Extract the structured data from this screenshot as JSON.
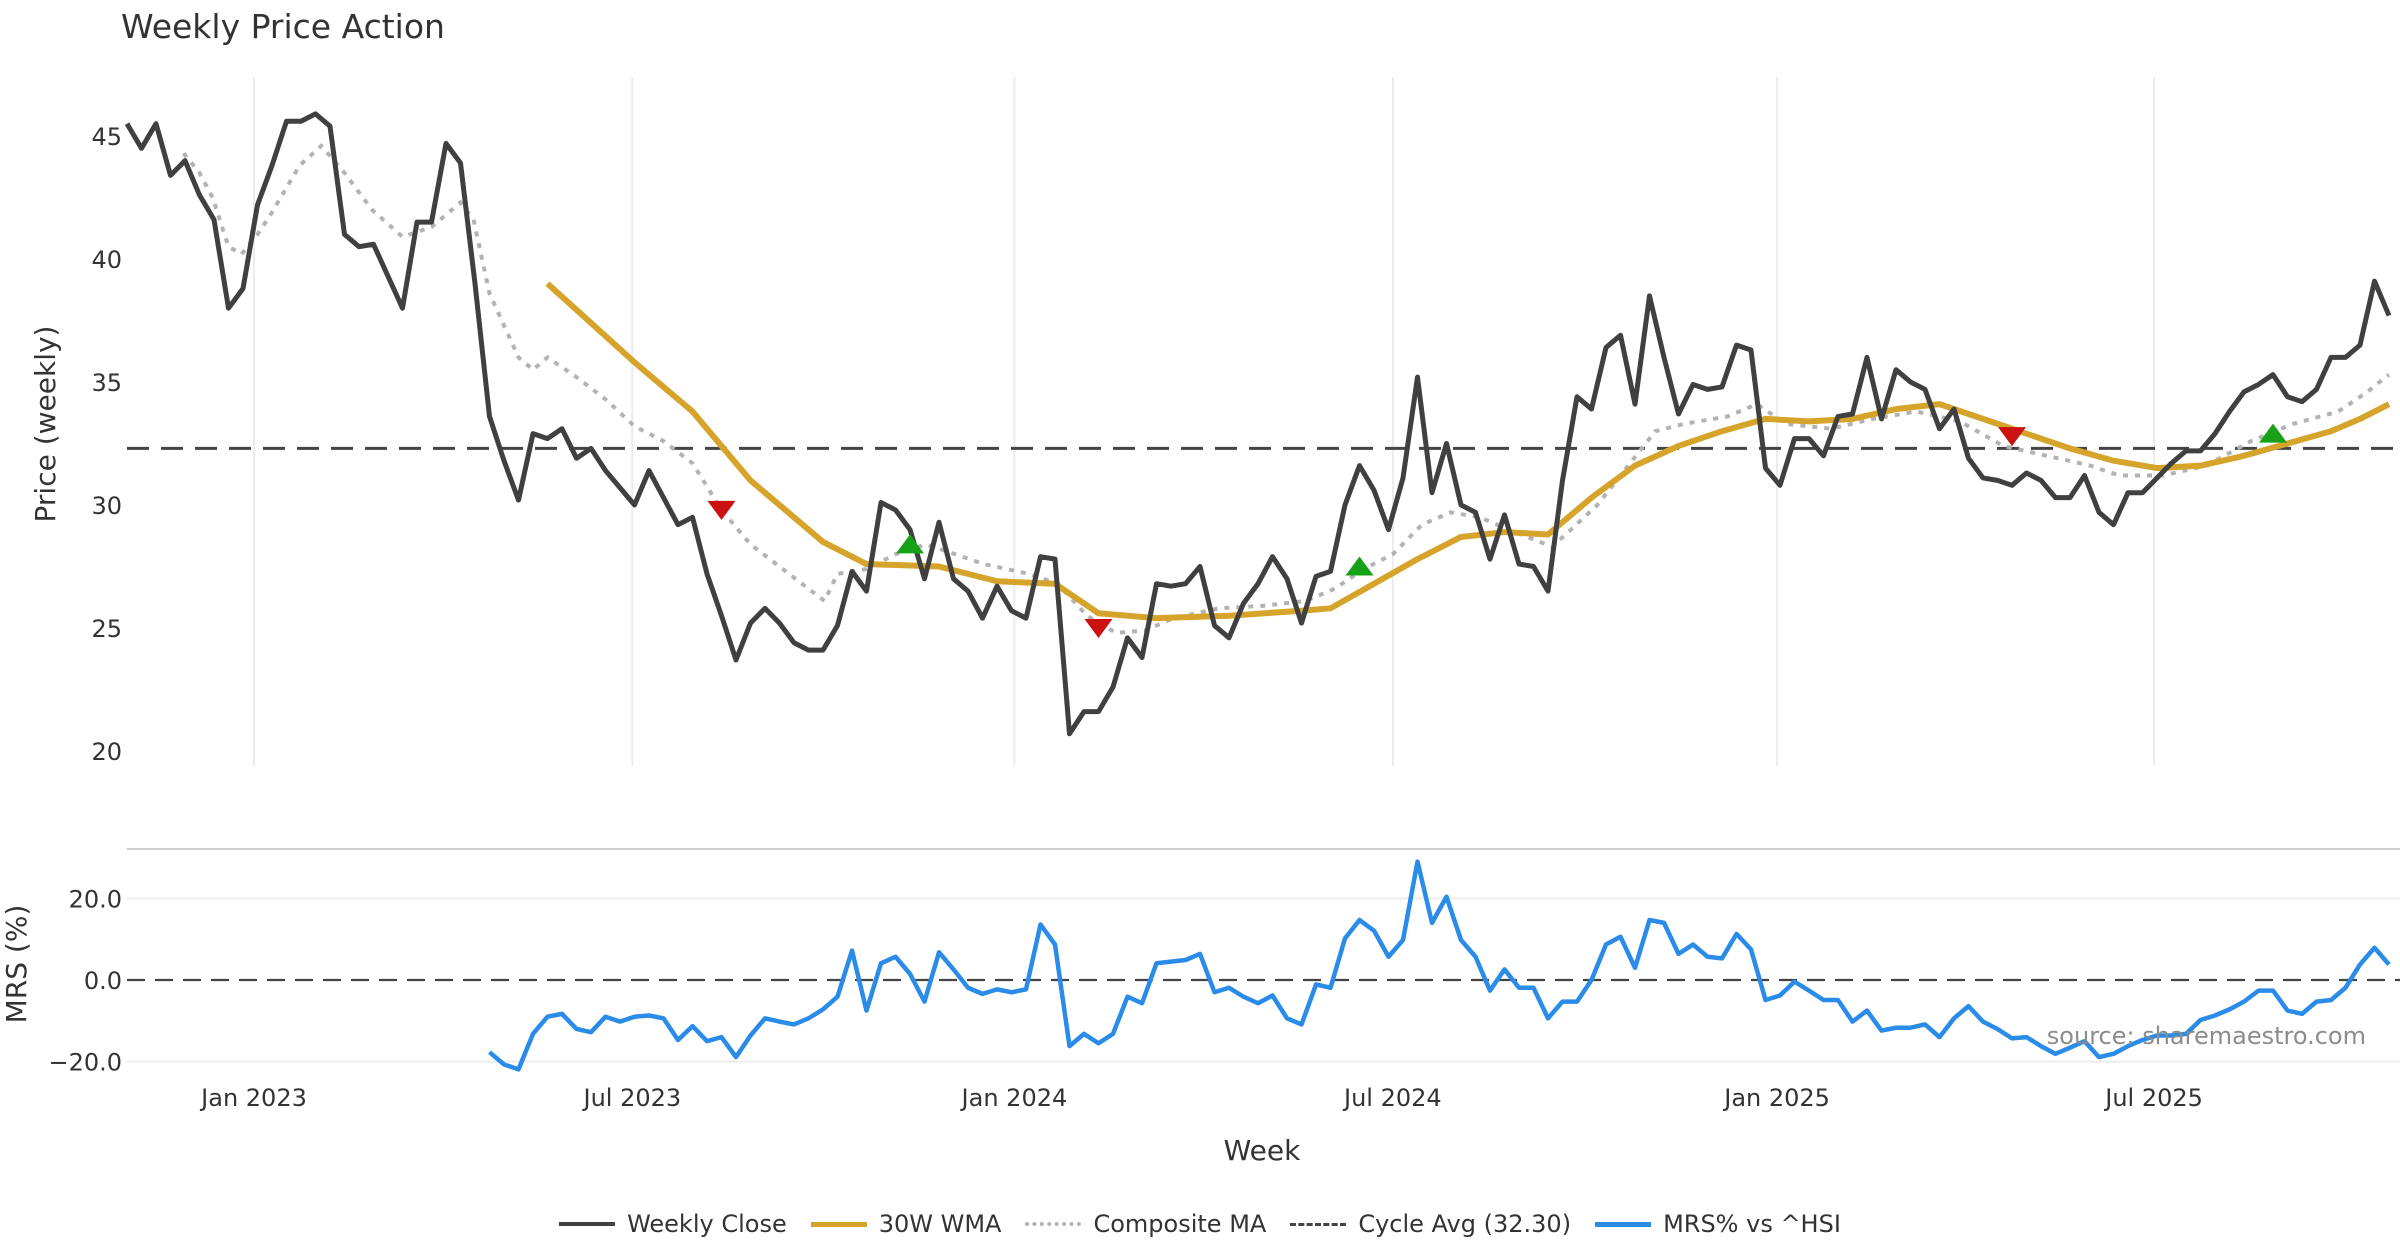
{
  "chart_data": [
    {
      "type": "line",
      "title": "Weekly Price Action",
      "ylabel": "Price (weekly)",
      "ylim": [
        20,
        47
      ],
      "yticks": [
        20,
        25,
        30,
        35,
        40,
        45
      ],
      "x_unit": "week index",
      "grid": "vertical",
      "cycle_avg": 32.3,
      "series": [
        {
          "name": "Weekly Close",
          "color": "#404040",
          "start": 0,
          "values": [
            45.5,
            44.5,
            45.5,
            43.4,
            44,
            42.6,
            41.6,
            38,
            38.8,
            42.2,
            43.8,
            45.6,
            45.6,
            45.9,
            45.4,
            41,
            40.5,
            40.6,
            39.3,
            38,
            41.5,
            41.5,
            44.7,
            43.9,
            39,
            33.6,
            31.8,
            30.2,
            32.9,
            32.7,
            33.1,
            31.9,
            32.3,
            31.4,
            30.7,
            30,
            31.4,
            30.3,
            29.2,
            29.5,
            27.2,
            25.5,
            23.7,
            25.2,
            25.8,
            25.2,
            24.4,
            24.1,
            24.1,
            25.1,
            27.3,
            26.5,
            30.1,
            29.8,
            29,
            27,
            29.3,
            27,
            26.5,
            25.4,
            26.7,
            25.7,
            25.4,
            27.9,
            27.8,
            20.7,
            21.6,
            21.6,
            22.6,
            24.6,
            23.8,
            26.8,
            26.7,
            26.8,
            27.5,
            25.1,
            24.6,
            26,
            26.8,
            27.9,
            27,
            25.2,
            27.1,
            27.3,
            30,
            31.6,
            30.6,
            29,
            31.1,
            35.2,
            30.5,
            32.5,
            30,
            29.7,
            27.8,
            29.6,
            27.6,
            27.5,
            26.5,
            31,
            34.4,
            33.9,
            36.4,
            36.9,
            34.1,
            38.5,
            36,
            33.7,
            34.9,
            34.7,
            34.8,
            36.5,
            36.3,
            31.5,
            30.8,
            32.7,
            32.7,
            32,
            33.6,
            33.7,
            36,
            33.5,
            35.5,
            35,
            34.7,
            33.1,
            33.9,
            31.9,
            31.1,
            31,
            30.8,
            31.3,
            31,
            30.3,
            30.3,
            31.2,
            29.7,
            29.2,
            30.5,
            30.5,
            31.1,
            31.7,
            32.2,
            32.2,
            32.9,
            33.8,
            34.6,
            34.9,
            35.3,
            34.4,
            34.2,
            34.7,
            36,
            36,
            36.5,
            39.1,
            37.7
          ]
        },
        {
          "name": "30W WMA",
          "color": "#d6a42a",
          "points": [
            [
              29,
              39
            ],
            [
              35,
              35.8
            ],
            [
              39,
              33.8
            ],
            [
              43,
              31
            ],
            [
              48,
              28.5
            ],
            [
              51,
              27.6
            ],
            [
              56,
              27.5
            ],
            [
              60,
              26.9
            ],
            [
              64,
              26.8
            ],
            [
              67,
              25.6
            ],
            [
              71,
              25.4
            ],
            [
              76,
              25.5
            ],
            [
              81,
              25.7
            ],
            [
              83,
              25.8
            ],
            [
              86,
              26.8
            ],
            [
              89,
              27.8
            ],
            [
              92,
              28.7
            ],
            [
              95,
              28.9
            ],
            [
              98,
              28.8
            ],
            [
              101,
              30.3
            ],
            [
              104,
              31.6
            ],
            [
              107,
              32.4
            ],
            [
              110,
              33
            ],
            [
              113,
              33.5
            ],
            [
              116,
              33.4
            ],
            [
              119,
              33.5
            ],
            [
              122,
              33.9
            ],
            [
              125,
              34.1
            ],
            [
              128,
              33.5
            ],
            [
              131,
              32.9
            ],
            [
              134,
              32.3
            ],
            [
              137,
              31.8
            ],
            [
              140,
              31.5
            ],
            [
              143,
              31.6
            ],
            [
              146,
              32
            ],
            [
              149,
              32.5
            ],
            [
              152,
              33
            ],
            [
              154,
              33.5
            ],
            [
              156,
              34.1
            ]
          ]
        },
        {
          "name": "Composite MA",
          "color": "#b3b3b3",
          "points": [
            [
              3.9,
              44.3
            ],
            [
              5,
              43.5
            ],
            [
              5.9,
              42.5
            ],
            [
              7,
              40.5
            ],
            [
              7.9,
              40.2
            ],
            [
              9,
              41
            ],
            [
              9.9,
              41.8
            ],
            [
              11.9,
              43.8
            ],
            [
              13.4,
              44.6
            ],
            [
              15,
              43.5
            ],
            [
              16.9,
              42
            ],
            [
              19,
              40.9
            ],
            [
              21,
              41.3
            ],
            [
              23,
              42.3
            ],
            [
              23.9,
              41.6
            ],
            [
              25,
              38.6
            ],
            [
              27,
              36
            ],
            [
              28,
              35.5
            ],
            [
              29,
              36
            ],
            [
              31,
              35.2
            ],
            [
              33,
              34.3
            ],
            [
              35,
              33.2
            ],
            [
              37,
              32.6
            ],
            [
              39,
              31.7
            ],
            [
              41,
              29.8
            ],
            [
              43,
              28.4
            ],
            [
              45,
              27.5
            ],
            [
              48.1,
              26.1
            ],
            [
              49,
              27.2
            ],
            [
              51,
              27.4
            ],
            [
              53,
              28
            ],
            [
              55.1,
              28.4
            ],
            [
              57.1,
              28
            ],
            [
              59.1,
              27.6
            ],
            [
              62.2,
              27.2
            ],
            [
              64.2,
              26.8
            ],
            [
              66.2,
              25.5
            ],
            [
              68.2,
              24.8
            ],
            [
              70.2,
              24.9
            ],
            [
              72.2,
              25.4
            ],
            [
              75.3,
              25.8
            ],
            [
              78.3,
              25.9
            ],
            [
              81.3,
              26.1
            ],
            [
              83.3,
              26.6
            ],
            [
              85.3,
              27.4
            ],
            [
              87.3,
              28
            ],
            [
              89.3,
              29.2
            ],
            [
              91.3,
              29.7
            ],
            [
              93.3,
              29.5
            ],
            [
              95.3,
              29
            ],
            [
              98.3,
              28.3
            ],
            [
              101.4,
              30
            ],
            [
              103.4,
              31.5
            ],
            [
              105.4,
              33
            ],
            [
              107.4,
              33.3
            ],
            [
              110.4,
              33.6
            ],
            [
              112.4,
              34.1
            ],
            [
              114.4,
              33.3
            ],
            [
              117.5,
              33.1
            ],
            [
              120.4,
              33.5
            ],
            [
              123.4,
              33.8
            ],
            [
              126.4,
              33.4
            ],
            [
              129.4,
              32.4
            ],
            [
              132.4,
              32
            ],
            [
              135.4,
              31.6
            ],
            [
              137.4,
              31.2
            ],
            [
              140.4,
              31.2
            ],
            [
              143.4,
              31.6
            ],
            [
              146.5,
              32.6
            ],
            [
              149.4,
              33.3
            ],
            [
              152.5,
              33.8
            ],
            [
              154.5,
              34.6
            ],
            [
              156,
              35.3
            ]
          ]
        }
      ],
      "signals": [
        {
          "type": "sell",
          "week": 41,
          "price": 29.8
        },
        {
          "type": "buy",
          "week": 54,
          "price": 28.4
        },
        {
          "type": "sell",
          "week": 67,
          "price": 25.0
        },
        {
          "type": "buy",
          "week": 85,
          "price": 27.5
        },
        {
          "type": "sell",
          "week": 130,
          "price": 32.8
        },
        {
          "type": "buy",
          "week": 148,
          "price": 32.9
        }
      ]
    },
    {
      "type": "line",
      "ylabel": "MRS (%)",
      "ylim": [
        -22,
        30
      ],
      "yticks": [
        {
          "v": 20,
          "label": "20.0"
        },
        {
          "v": 0,
          "label": "0.0"
        },
        {
          "v": -20,
          "label": "−20.0"
        }
      ],
      "series": [
        {
          "name": "MRS% vs ^HSI",
          "color": "#2a8ce8",
          "start": 25,
          "values": [
            -17.7,
            -20.7,
            -21.9,
            -13.2,
            -9,
            -8.3,
            -12,
            -12.8,
            -9,
            -10.2,
            -9,
            -8.7,
            -9.4,
            -14.7,
            -11.3,
            -15,
            -14,
            -18.9,
            -13.6,
            -9.4,
            -10.2,
            -10.9,
            -9.4,
            -7.2,
            -4.1,
            7.2,
            -7.5,
            4.1,
            5.7,
            1.5,
            -5.3,
            6.8,
            2.6,
            -1.9,
            -3.4,
            -2.3,
            -3,
            -2.3,
            13.6,
            8.7,
            -16.2,
            -13.2,
            -15.5,
            -13.2,
            -4.1,
            -5.7,
            4.1,
            4.5,
            4.9,
            6.4,
            -3,
            -1.9,
            -4.1,
            -5.7,
            -3.8,
            -9.4,
            -10.9,
            -1.1,
            -1.9,
            10.2,
            14.7,
            12.1,
            5.7,
            9.8,
            29,
            14,
            20.4,
            9.8,
            5.7,
            -2.6,
            2.6,
            -1.9,
            -1.9,
            -9.4,
            -5.3,
            -5.3,
            0,
            8.7,
            10.6,
            3,
            14.7,
            14,
            6.4,
            8.7,
            5.7,
            5.3,
            11.3,
            7.5,
            -4.9,
            -3.8,
            -0.4,
            -2.6,
            -4.9,
            -4.9,
            -10.2,
            -7.5,
            -12.4,
            -11.7,
            -11.7,
            -10.9,
            -14,
            -9.4,
            -6.4,
            -10.2,
            -12,
            -14.3,
            -14,
            -16.2,
            -18.1,
            -16.6,
            -15,
            -18.9,
            -18.1,
            -16.2,
            -14.7,
            -13.6,
            -13.6,
            -13.2,
            -9.8,
            -8.7,
            -7.2,
            -5.3,
            -2.6,
            -2.6,
            -7.5,
            -8.3,
            -5.3,
            -4.9,
            -1.9,
            3.8,
            7.9,
            3.8
          ]
        }
      ]
    }
  ],
  "xaxis": {
    "label": "Week",
    "ticks": [
      {
        "week": 8.76,
        "label": "Jan 2023"
      },
      {
        "week": 34.85,
        "label": "Jul 2023"
      },
      {
        "week": 61.2,
        "label": "Jan 2024"
      },
      {
        "week": 87.3,
        "label": "Jul 2024"
      },
      {
        "week": 113.8,
        "label": "Jan 2025"
      },
      {
        "week": 139.8,
        "label": "Jul 2025"
      }
    ]
  },
  "source": "source: sharemaestro.com",
  "legend": {
    "placement": "bottom-center",
    "items": [
      {
        "label": "Weekly Close",
        "color": "#404040",
        "style": "solid"
      },
      {
        "label": "30W WMA",
        "color": "#d6a42a",
        "style": "solid"
      },
      {
        "label": "Composite MA",
        "color": "#b3b3b3",
        "style": "dotted"
      },
      {
        "label": "Cycle Avg (32.30)",
        "color": "#444444",
        "style": "dashed"
      },
      {
        "label": "MRS% vs ^HSI",
        "color": "#2a8ce8",
        "style": "solid"
      }
    ]
  },
  "colors": {
    "sell": "#cc1111",
    "buy": "#19a019",
    "grid": "#ececec"
  }
}
